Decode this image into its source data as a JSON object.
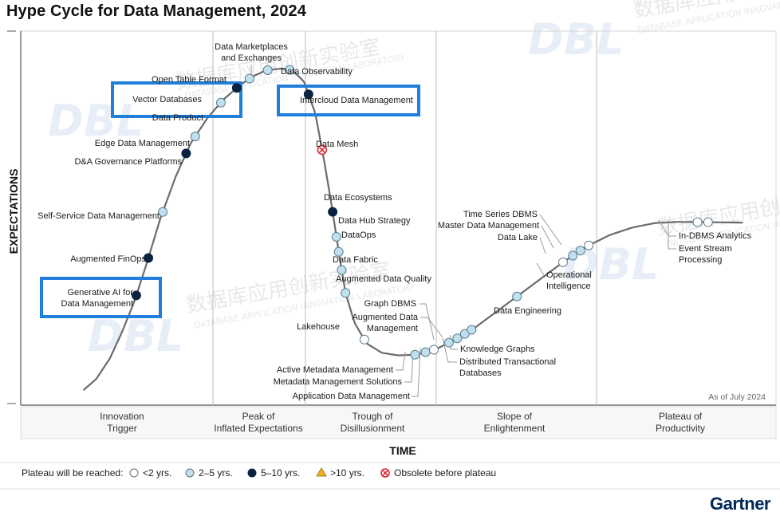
{
  "title": "Hype Cycle for Data Management, 2024",
  "as_of": "As of July 2024",
  "logo": "Gartner",
  "watermarks": {
    "brand": "DBL",
    "cn": "数据库应用创新实验室",
    "en": "DATABASE APPLICATION INNOVATION LABORATORY"
  },
  "colors": {
    "lt2": "#ffffff",
    "y2to5": "#bfe0ef",
    "y5to10": "#0b2341",
    "gt10": "#f2b21b",
    "obsolete": "#d9262b",
    "curve": "#6b6b6b",
    "highlight": "#1f7fdb"
  },
  "chart_data": {
    "type": "scatter",
    "title": "Hype Cycle for Data Management, 2024",
    "xlabel": "TIME",
    "ylabel": "EXPECTATIONS",
    "phases": [
      "Innovation Trigger",
      "Peak of Inflated Expectations",
      "Trough of Disillusionment",
      "Slope of Enlightenment",
      "Plateau of Productivity"
    ],
    "legend": {
      "title": "Plateau will be reached:",
      "items": [
        {
          "key": "lt2",
          "label": "<2 yrs."
        },
        {
          "key": "y2to5",
          "label": "2–5 yrs."
        },
        {
          "key": "y5to10",
          "label": "5–10 yrs."
        },
        {
          "key": "gt10",
          "label": ">10 yrs."
        },
        {
          "key": "obsolete",
          "label": "Obsolete before plateau"
        }
      ]
    },
    "points": [
      {
        "name": "Generative AI for Data Management",
        "t": 0.153,
        "cat": "y5to10",
        "highlight": true
      },
      {
        "name": "Augmented FinOps",
        "t": 0.169,
        "cat": "y5to10"
      },
      {
        "name": "Self-Service Data Management",
        "t": 0.188,
        "cat": "y2to5"
      },
      {
        "name": "D&A Governance Platforms",
        "t": 0.219,
        "cat": "y5to10"
      },
      {
        "name": "Edge Data Management",
        "t": 0.231,
        "cat": "y2to5"
      },
      {
        "name": "Data Product",
        "t": 0.265,
        "cat": "y2to5"
      },
      {
        "name": "Vector Databases",
        "t": 0.286,
        "cat": "y5to10",
        "highlight": true
      },
      {
        "name": "Open Table Format",
        "t": 0.303,
        "cat": "y2to5"
      },
      {
        "name": "Data Marketplaces and Exchanges",
        "t": 0.327,
        "cat": "y2to5"
      },
      {
        "name": "Data Observability",
        "t": 0.356,
        "cat": "y2to5"
      },
      {
        "name": "Intercloud Data Management",
        "t": 0.381,
        "cat": "y5to10",
        "highlight": true
      },
      {
        "name": "Data Mesh",
        "t": 0.399,
        "cat": "obsolete"
      },
      {
        "name": "Data Ecosystems",
        "t": 0.413,
        "cat": "y5to10"
      },
      {
        "name": "Data Hub Strategy",
        "t": 0.418,
        "cat": "y2to5"
      },
      {
        "name": "DataOps",
        "t": 0.421,
        "cat": "y2to5"
      },
      {
        "name": "Data Fabric",
        "t": 0.425,
        "cat": "y2to5"
      },
      {
        "name": "Augmented Data Quality",
        "t": 0.43,
        "cat": "y2to5"
      },
      {
        "name": "Lakehouse",
        "t": 0.455,
        "cat": "lt2"
      },
      {
        "name": "Active Metadata Management",
        "t": 0.522,
        "cat": "y2to5"
      },
      {
        "name": "Metadata Management Solutions",
        "t": 0.536,
        "cat": "y2to5"
      },
      {
        "name": "Application Data Management",
        "t": 0.547,
        "cat": "lt2"
      },
      {
        "name": "Graph DBMS",
        "t": 0.567,
        "cat": "y2to5"
      },
      {
        "name": "Augmented Data Management",
        "t": 0.578,
        "cat": "y2to5"
      },
      {
        "name": "Knowledge Graphs",
        "t": 0.588,
        "cat": "y2to5"
      },
      {
        "name": "Distributed Transactional Databases",
        "t": 0.597,
        "cat": "y2to5"
      },
      {
        "name": "Data Engineering",
        "t": 0.657,
        "cat": "y2to5"
      },
      {
        "name": "Operational Intelligence",
        "t": 0.718,
        "cat": "lt2"
      },
      {
        "name": "Data Lake",
        "t": 0.731,
        "cat": "y2to5"
      },
      {
        "name": "Master Data Management",
        "t": 0.741,
        "cat": "y2to5"
      },
      {
        "name": "Time Series DBMS",
        "t": 0.752,
        "cat": "lt2"
      },
      {
        "name": "In-DBMS Analytics",
        "t": 0.896,
        "cat": "lt2"
      },
      {
        "name": "Event Stream Processing",
        "t": 0.91,
        "cat": "lt2"
      }
    ]
  }
}
